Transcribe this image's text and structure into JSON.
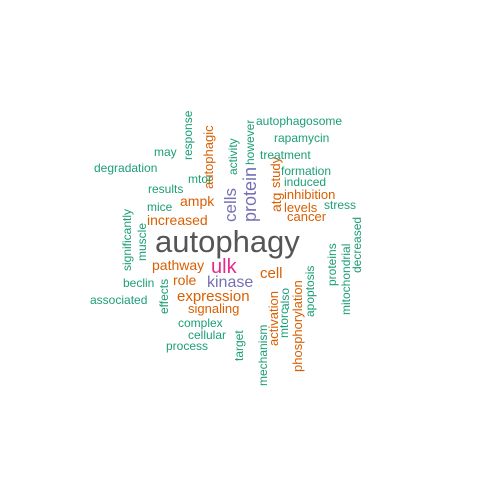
{
  "colors": {
    "teal": "#1b9e77",
    "orange": "#d95f02",
    "purple": "#7570b3",
    "magenta": "#e7298a",
    "gray": "#555555"
  },
  "words": [
    {
      "text": "autophagy",
      "color": "gray"
    },
    {
      "text": "ulk",
      "color": "magenta"
    },
    {
      "text": "protein",
      "color": "purple"
    },
    {
      "text": "cells",
      "color": "purple"
    },
    {
      "text": "kinase",
      "color": "purple"
    },
    {
      "text": "expression",
      "color": "orange"
    },
    {
      "text": "cell",
      "color": "orange"
    },
    {
      "text": "atg",
      "color": "orange"
    },
    {
      "text": "ampk",
      "color": "orange"
    },
    {
      "text": "increased",
      "color": "orange"
    },
    {
      "text": "pathway",
      "color": "orange"
    },
    {
      "text": "role",
      "color": "orange"
    },
    {
      "text": "signaling",
      "color": "orange"
    },
    {
      "text": "autophagic",
      "color": "orange"
    },
    {
      "text": "inhibition",
      "color": "orange"
    },
    {
      "text": "levels",
      "color": "orange"
    },
    {
      "text": "cancer",
      "color": "orange"
    },
    {
      "text": "study",
      "color": "orange"
    },
    {
      "text": "activation",
      "color": "orange"
    },
    {
      "text": "phosphorylation",
      "color": "orange"
    },
    {
      "text": "autophagosome",
      "color": "teal"
    },
    {
      "text": "rapamycin",
      "color": "teal"
    },
    {
      "text": "treatment",
      "color": "teal"
    },
    {
      "text": "formation",
      "color": "teal"
    },
    {
      "text": "induced",
      "color": "teal"
    },
    {
      "text": "stress",
      "color": "teal"
    },
    {
      "text": "degradation",
      "color": "teal"
    },
    {
      "text": "may",
      "color": "teal"
    },
    {
      "text": "response",
      "color": "teal"
    },
    {
      "text": "however",
      "color": "teal"
    },
    {
      "text": "activity",
      "color": "teal"
    },
    {
      "text": "mtor",
      "color": "teal"
    },
    {
      "text": "results",
      "color": "teal"
    },
    {
      "text": "mice",
      "color": "teal"
    },
    {
      "text": "significantly",
      "color": "teal"
    },
    {
      "text": "muscle",
      "color": "teal"
    },
    {
      "text": "beclin",
      "color": "teal"
    },
    {
      "text": "associated",
      "color": "teal"
    },
    {
      "text": "effects",
      "color": "teal"
    },
    {
      "text": "complex",
      "color": "teal"
    },
    {
      "text": "cellular",
      "color": "teal"
    },
    {
      "text": "process",
      "color": "teal"
    },
    {
      "text": "target",
      "color": "teal"
    },
    {
      "text": "mechanism",
      "color": "teal"
    },
    {
      "text": "mtorc",
      "color": "teal"
    },
    {
      "text": "also",
      "color": "teal"
    },
    {
      "text": "apoptosis",
      "color": "teal"
    },
    {
      "text": "proteins",
      "color": "teal"
    },
    {
      "text": "mitochondrial",
      "color": "teal"
    },
    {
      "text": "decreased",
      "color": "teal"
    }
  ]
}
